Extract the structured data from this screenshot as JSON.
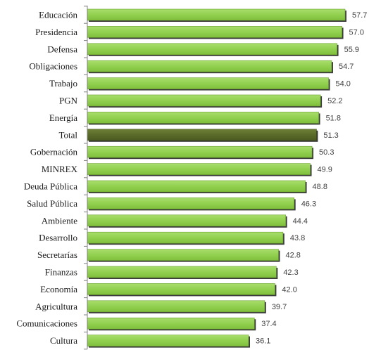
{
  "chart_data": {
    "type": "bar",
    "orientation": "horizontal",
    "title": "",
    "xlabel": "",
    "ylabel": "",
    "xlim": [
      0,
      57.7
    ],
    "grid": false,
    "legend": "none",
    "colors": {
      "bar": "#92D050",
      "bar_highlight": "#5A6B2A",
      "axis": "#808080",
      "text": "#1a1a1a"
    },
    "highlight_category": "Total",
    "categories": [
      "Educación",
      "Presidencia",
      "Defensa",
      "Obligaciones",
      "Trabajo",
      "PGN",
      "Energía",
      "Total",
      "Gobernación",
      "MINREX",
      "Deuda Pública",
      "Salud Pública",
      "Ambiente",
      "Desarrollo",
      "Secretarías",
      "Finanzas",
      "Economía",
      "Agricultura",
      "Comunicaciones",
      "Cultura"
    ],
    "values": [
      57.7,
      57.0,
      55.9,
      54.7,
      54.0,
      52.2,
      51.8,
      51.3,
      50.3,
      49.9,
      48.8,
      46.3,
      44.4,
      43.8,
      42.8,
      42.3,
      42.0,
      39.7,
      37.4,
      36.1
    ],
    "value_labels": [
      "57.7",
      "57.0",
      "55.9",
      "54.7",
      "54.0",
      "52.2",
      "51.8",
      "51.3",
      "50.3",
      "49.9",
      "48.8",
      "46.3",
      "44.4",
      "43.8",
      "42.8",
      "42.3",
      "42.0",
      "39.7",
      "37.4",
      "36.1"
    ]
  }
}
